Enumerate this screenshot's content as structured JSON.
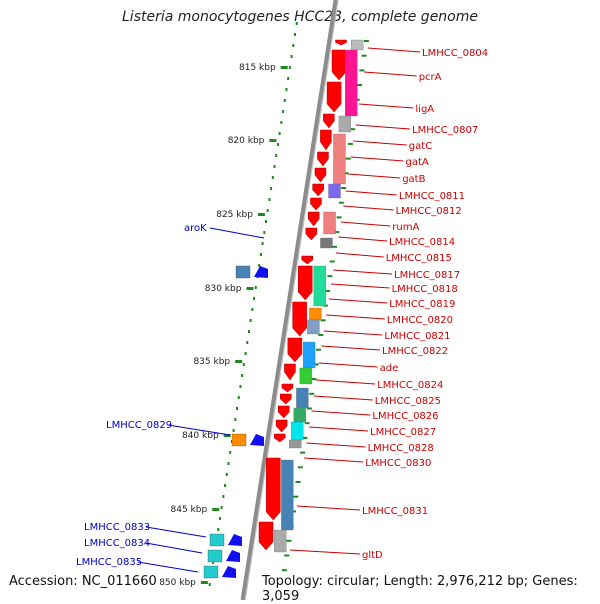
{
  "title": "Listeria monocytogenes HCC23, complete genome",
  "accession": "Accession: NC_011660",
  "topology": "Topology: circular; Length: 2,976,212 bp; Genes: 3,059",
  "colors": {
    "backbone": "#8c8c8c",
    "tick": "#1d8a1d",
    "cds": "#ff0000",
    "gene_label_right": "#cc0000",
    "gene_label_left": "#0000cc",
    "left_arrow": "#1010ee"
  },
  "scale_ticks": [
    "815 kbp",
    "820 kbp",
    "825 kbp",
    "830 kbp",
    "835 kbp",
    "840 kbp",
    "845 kbp",
    "850 kbp"
  ],
  "right_labels": [
    "LMHCC_0804",
    "pcrA",
    "ligA",
    "LMHCC_0807",
    "gatC",
    "gatA",
    "gatB",
    "LMHCC_0811",
    "LMHCC_0812",
    "rumA",
    "LMHCC_0814",
    "LMHCC_0815",
    "LMHCC_0817",
    "LMHCC_0818",
    "LMHCC_0819",
    "LMHCC_0820",
    "LMHCC_0821",
    "LMHCC_0822",
    "ade",
    "LMHCC_0824",
    "LMHCC_0825",
    "LMHCC_0826",
    "LMHCC_0827",
    "LMHCC_0828",
    "LMHCC_0830",
    "LMHCC_0831",
    "gltD"
  ],
  "left_labels": [
    "aroK",
    "LMHCC_0829",
    "LMHCC_0833",
    "LMHCC_0834",
    "LMHCC_0835"
  ]
}
